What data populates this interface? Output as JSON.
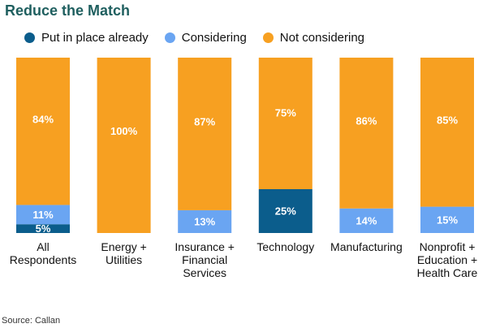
{
  "colors": {
    "title": "#1f5f5f",
    "put_in_place": "#0b5d8c",
    "considering": "#6aa5f2",
    "not_considering": "#f7a021",
    "value_label": "#ffffff",
    "category_label": "#111111"
  },
  "chart_data": {
    "type": "bar",
    "stacked": true,
    "title": "Reduce the Match",
    "legend_position": "top",
    "grid": false,
    "ylim": [
      0,
      100
    ],
    "categories": [
      [
        "All",
        "Respondents"
      ],
      [
        "Energy +",
        "Utilities"
      ],
      [
        "Insurance +",
        "Financial",
        "Services"
      ],
      [
        "Technology"
      ],
      [
        "Manufacturing"
      ],
      [
        "Nonprofit +",
        "Education +",
        "Health Care"
      ]
    ],
    "series": [
      {
        "name": "Put in place already",
        "values": [
          5,
          0,
          0,
          25,
          0,
          0
        ]
      },
      {
        "name": "Considering",
        "values": [
          11,
          0,
          13,
          0,
          14,
          15
        ]
      },
      {
        "name": "Not considering",
        "values": [
          84,
          100,
          87,
          75,
          86,
          85
        ]
      }
    ],
    "data_labels": [
      [
        "5%",
        "",
        "",
        "25%",
        "",
        ""
      ],
      [
        "11%",
        "",
        "13%",
        "",
        "14%",
        "15%"
      ],
      [
        "84%",
        "100%",
        "87%",
        "75%",
        "86%",
        "85%"
      ]
    ],
    "source": "Source: Callan"
  }
}
